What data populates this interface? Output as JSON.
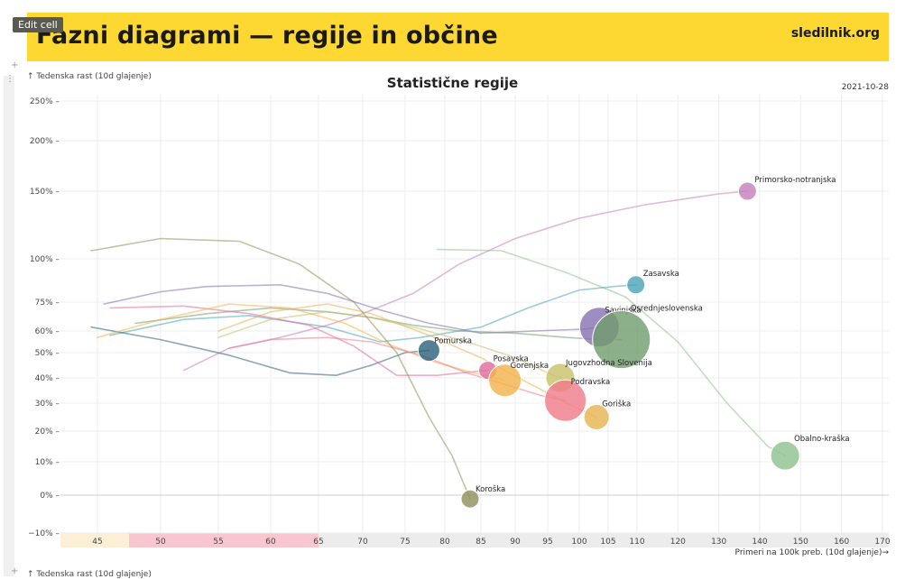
{
  "editor": {
    "edit_cell_label": "Edit cell"
  },
  "header": {
    "title": "Fazni diagrami — regije in občine",
    "site": "sledilnik.org"
  },
  "chart_data": {
    "type": "scatter",
    "title": "Statistične regije",
    "date": "2021-10-28",
    "ylabel": "↑ Tedenska rast (10d glajenje)",
    "xlabel": "Primeri na 100k preb. (10d glajenje)→",
    "y_ticks": [
      "250% –",
      "200% –",
      "150% –",
      "100% –",
      "75% –",
      "60% –",
      "50% –",
      "40% –",
      "30% –",
      "20% –",
      "10% –",
      "0% –",
      "−10% –"
    ],
    "x_ticks": [
      "45",
      "50",
      "55",
      "60",
      "65",
      "70",
      "75",
      "80",
      "85",
      "90",
      "95",
      "100",
      "105",
      "110",
      "120",
      "130",
      "140",
      "150",
      "160",
      "170"
    ],
    "x_segments": [
      "45",
      "50–65",
      "65–170"
    ],
    "series": [
      {
        "name": "Primorsko-notranjska",
        "color": "#c47dbc",
        "x": 137.0,
        "y": 150,
        "trail": [
          [
            52,
            43
          ],
          [
            56,
            52
          ],
          [
            61,
            57
          ],
          [
            66,
            63
          ],
          [
            70,
            69
          ],
          [
            76,
            80
          ],
          [
            82,
            97
          ],
          [
            90,
            115
          ],
          [
            100,
            130
          ],
          [
            112,
            140
          ],
          [
            130,
            148
          ],
          [
            137,
            150
          ]
        ]
      },
      {
        "name": "Zasavska",
        "color": "#4aa3b6",
        "x": 109.8,
        "y": 85,
        "trail": [
          [
            46,
            58
          ],
          [
            52,
            66
          ],
          [
            58,
            68
          ],
          [
            66,
            62
          ],
          [
            72,
            55
          ],
          [
            77,
            57
          ],
          [
            85,
            62
          ],
          [
            92,
            72
          ],
          [
            100,
            82
          ],
          [
            106,
            84
          ],
          [
            109.8,
            85
          ]
        ]
      },
      {
        "name": "Savinjska",
        "color": "#8470b0",
        "x": 103.5,
        "y": 62,
        "trail": [
          [
            45.5,
            74
          ],
          [
            50,
            81
          ],
          [
            54,
            84
          ],
          [
            61,
            85
          ],
          [
            66,
            80
          ],
          [
            72,
            71
          ],
          [
            78,
            64
          ],
          [
            85,
            59
          ],
          [
            93,
            60
          ],
          [
            101,
            61
          ],
          [
            103.5,
            62
          ]
        ]
      },
      {
        "name": "Osrednjeslovenska",
        "color": "#6f9c6c",
        "x": 107.3,
        "y": 56,
        "trail": [
          [
            48,
            64
          ],
          [
            54,
            69
          ],
          [
            60,
            72
          ],
          [
            66,
            70
          ],
          [
            71,
            67
          ],
          [
            76,
            63
          ],
          [
            82,
            60
          ],
          [
            90,
            59
          ],
          [
            98,
            57
          ],
          [
            104,
            56
          ],
          [
            107.3,
            56
          ]
        ]
      },
      {
        "name": "Obalno-kraška",
        "color": "#8fc08f",
        "x": 146.2,
        "y": 12,
        "trail": [
          [
            79,
            107
          ],
          [
            88,
            106
          ],
          [
            98,
            92
          ],
          [
            108,
            78
          ],
          [
            120,
            55
          ],
          [
            132,
            30
          ],
          [
            142,
            15
          ],
          [
            146.2,
            12
          ]
        ]
      },
      {
        "name": "Pomurska",
        "color": "#2b5f7a",
        "x": 78.0,
        "y": 51,
        "trail": [
          [
            44.5,
            62
          ],
          [
            50,
            56
          ],
          [
            56,
            49
          ],
          [
            62,
            42
          ],
          [
            67,
            41
          ],
          [
            71,
            45
          ],
          [
            75,
            50
          ],
          [
            78,
            51
          ]
        ]
      },
      {
        "name": "Posavska",
        "color": "#e06a9b",
        "x": 86.0,
        "y": 43,
        "trail": [
          [
            46,
            72
          ],
          [
            52,
            73
          ],
          [
            58,
            69
          ],
          [
            64,
            63
          ],
          [
            69,
            53
          ],
          [
            74,
            41
          ],
          [
            79,
            41
          ],
          [
            86,
            43
          ]
        ]
      },
      {
        "name": "Gorenjska",
        "color": "#f4b24a",
        "x": 88.5,
        "y": 39,
        "trail": [
          [
            45,
            57
          ],
          [
            50,
            66
          ],
          [
            56,
            74
          ],
          [
            62,
            72
          ],
          [
            68,
            64
          ],
          [
            73,
            54
          ],
          [
            79,
            46
          ],
          [
            84,
            42
          ],
          [
            88.5,
            39
          ]
        ]
      },
      {
        "name": "Jugovzhodna Slovenija",
        "color": "#c9c06a",
        "x": 97.0,
        "y": 40,
        "trail": [
          [
            55,
            57
          ],
          [
            60,
            66
          ],
          [
            66,
            70
          ],
          [
            71,
            67
          ],
          [
            77,
            61
          ],
          [
            84,
            54
          ],
          [
            90,
            48
          ],
          [
            95,
            42
          ],
          [
            97,
            40
          ]
        ]
      },
      {
        "name": "Podravska",
        "color": "#f07a8a",
        "x": 97.8,
        "y": 31,
        "trail": [
          [
            56,
            52
          ],
          [
            60,
            56
          ],
          [
            66,
            57
          ],
          [
            71,
            55
          ],
          [
            77,
            49
          ],
          [
            83,
            42
          ],
          [
            89,
            37
          ],
          [
            94,
            33
          ],
          [
            97.8,
            31
          ]
        ]
      },
      {
        "name": "Goriška",
        "color": "#e7b34f",
        "x": 103.0,
        "y": 25,
        "trail": [
          [
            55,
            60
          ],
          [
            60,
            70
          ],
          [
            66,
            74
          ],
          [
            71,
            69
          ],
          [
            78,
            58
          ],
          [
            85,
            48
          ],
          [
            92,
            38
          ],
          [
            98,
            30
          ],
          [
            103,
            25
          ]
        ]
      },
      {
        "name": "Koroška",
        "color": "#8f8f5a",
        "x": 83.5,
        "y": -1,
        "trail": [
          [
            44.5,
            106
          ],
          [
            50,
            115
          ],
          [
            57,
            113
          ],
          [
            63,
            97
          ],
          [
            69,
            75
          ],
          [
            74,
            50
          ],
          [
            78,
            25
          ],
          [
            81,
            12
          ],
          [
            83.5,
            -1
          ]
        ]
      }
    ],
    "colors": {
      "banner": "#fdd832",
      "band_low": "#fdefd6",
      "band_mid": "#f9c6d0",
      "band_high": "#ececec"
    }
  }
}
